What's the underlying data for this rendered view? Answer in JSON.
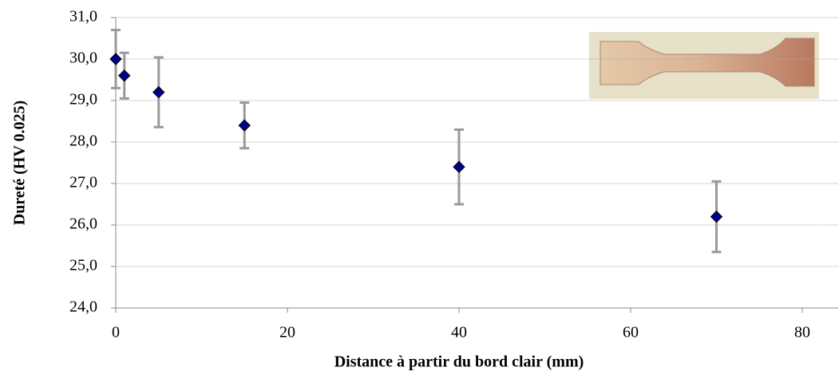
{
  "chart_data": {
    "type": "scatter",
    "x_label": "Distance à partir du bord clair (mm)",
    "y_label": "Dureté (HV 0.025)",
    "x": [
      0,
      1,
      5,
      15,
      40,
      70
    ],
    "values": [
      30.0,
      29.6,
      29.2,
      28.4,
      27.4,
      26.2
    ],
    "errors": [
      0.7,
      0.55,
      0.84,
      0.55,
      0.9,
      0.85
    ],
    "color": "#00008b",
    "error_color": "#999999",
    "xlim": [
      0,
      84
    ],
    "xticks": [
      0,
      20,
      40,
      60,
      80
    ],
    "ylim": [
      24,
      31
    ],
    "yticks": [
      {
        "value": 24,
        "label": "24,0"
      },
      {
        "value": 25,
        "label": "25,0"
      },
      {
        "value": 26,
        "label": "26,0"
      },
      {
        "value": 27,
        "label": "27,0"
      },
      {
        "value": 28,
        "label": "28,0"
      },
      {
        "value": 29,
        "label": "29,0"
      },
      {
        "value": 30,
        "label": "30,0"
      },
      {
        "value": 31,
        "label": "31,0"
      }
    ],
    "grid": true
  }
}
